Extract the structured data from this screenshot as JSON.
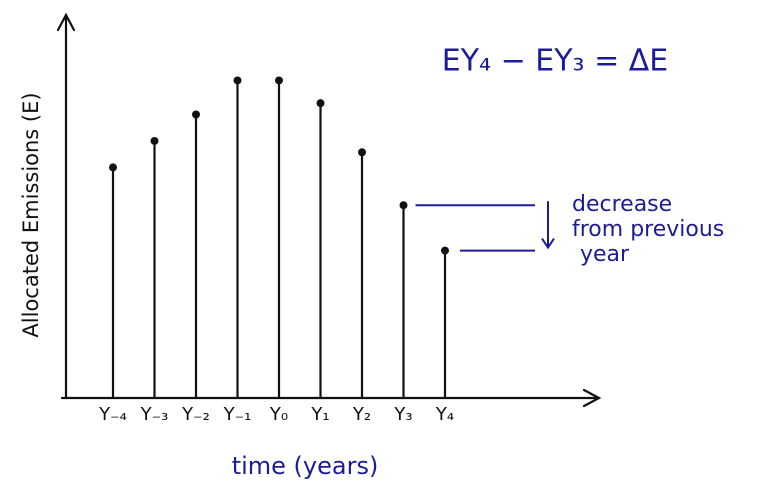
{
  "chart_data": {
    "type": "stem",
    "x_label": "time (years)",
    "y_label": "Allocated Emissions (E)",
    "categories": [
      "Y₋₄",
      "Y₋₃",
      "Y₋₂",
      "Y₋₁",
      "Y₀",
      "Y₁",
      "Y₂",
      "Y₃",
      "Y₄"
    ],
    "values": [
      61,
      68,
      75,
      84,
      84,
      78,
      65,
      51,
      39
    ],
    "ylim": [
      0,
      100
    ],
    "color": "#111111",
    "annotation_color": "#1c1c96",
    "equation": "EY₄ − EY₃ = ΔE",
    "annotation": [
      "decrease",
      "from previous",
      "year"
    ]
  }
}
